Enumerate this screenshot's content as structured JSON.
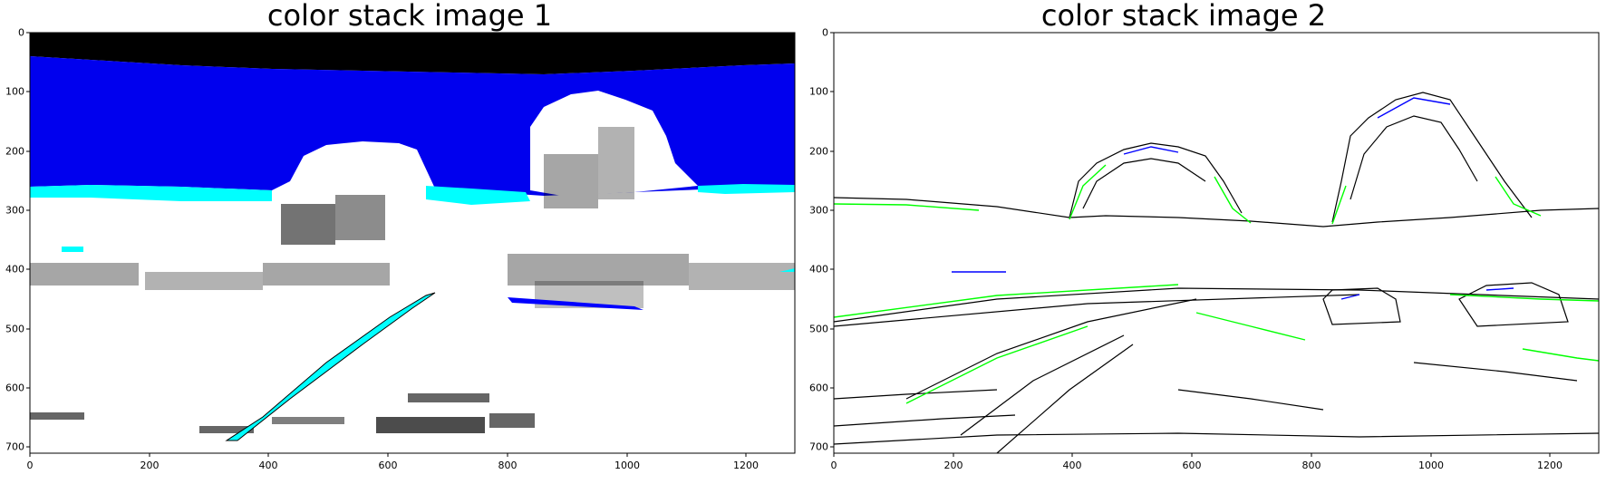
{
  "figure": {
    "panels": [
      {
        "title": "color stack image 1",
        "x_ticks": [
          "0",
          "200",
          "400",
          "600",
          "800",
          "1000",
          "1200"
        ],
        "y_ticks": [
          "0",
          "100",
          "200",
          "300",
          "400",
          "500",
          "600",
          "700"
        ]
      },
      {
        "title": "color stack image 2",
        "x_ticks": [
          "0",
          "200",
          "400",
          "600",
          "800",
          "1000",
          "1200"
        ],
        "y_ticks": [
          "0",
          "100",
          "200",
          "300",
          "400",
          "500",
          "600",
          "700"
        ]
      }
    ]
  },
  "colors": {
    "sky_black": "#000000",
    "sky_blue": "#0000ee",
    "horizon_cyan": "#00ffff",
    "edge_green": "#00ff00",
    "edge_blue": "#0000ff",
    "background": "#ffffff"
  }
}
